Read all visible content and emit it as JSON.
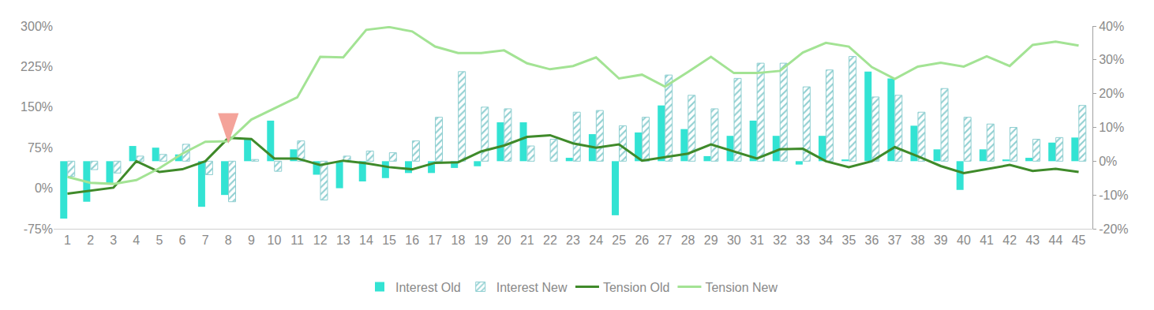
{
  "chart_data": {
    "type": "bar",
    "categories": [
      "1",
      "2",
      "3",
      "4",
      "5",
      "6",
      "7",
      "8",
      "9",
      "10",
      "11",
      "12",
      "13",
      "14",
      "15",
      "16",
      "17",
      "18",
      "19",
      "20",
      "21",
      "22",
      "23",
      "24",
      "25",
      "26",
      "27",
      "28",
      "29",
      "30",
      "31",
      "32",
      "33",
      "34",
      "35",
      "36",
      "37",
      "38",
      "39",
      "40",
      "41",
      "42",
      "43",
      "44",
      "45"
    ],
    "ylim": [
      -75,
      300
    ],
    "yticks": [
      {
        "value": -75,
        "label": "-75%"
      },
      {
        "value": 0,
        "label": "0%"
      },
      {
        "value": 75,
        "label": "75%"
      },
      {
        "value": 150,
        "label": "150%"
      },
      {
        "value": 225,
        "label": "225%"
      },
      {
        "value": 300,
        "label": "300%"
      }
    ],
    "y2lim": [
      -20,
      40
    ],
    "y2ticks": [
      {
        "value": -20,
        "label": "-20%"
      },
      {
        "value": -10,
        "label": "-10%"
      },
      {
        "value": 0,
        "label": "0%"
      },
      {
        "value": 10,
        "label": "10%"
      },
      {
        "value": 20,
        "label": "20%"
      },
      {
        "value": 30,
        "label": "30%"
      },
      {
        "value": 40,
        "label": "40%"
      }
    ],
    "grid": false,
    "legend": "bottom",
    "series": [
      {
        "name": "Tension Old",
        "type": "line",
        "color": "#3f8a2a",
        "line_style": "solid",
        "values": [
          -10,
          -5,
          1,
          50,
          30,
          35,
          50,
          93,
          91,
          55,
          55,
          43,
          51,
          46,
          39,
          35,
          47,
          48,
          68,
          79,
          95,
          98,
          83,
          75,
          81,
          51,
          57,
          64,
          81,
          68,
          55,
          72,
          73,
          50,
          39,
          50,
          76,
          59,
          41,
          28,
          36,
          43,
          32,
          36,
          30
        ]
      },
      {
        "name": "Tension New",
        "type": "line",
        "color": "#a3e394",
        "line_style": "solid",
        "values": [
          21,
          10,
          8,
          15,
          37,
          64,
          86,
          87,
          127,
          148,
          168,
          243,
          242,
          293,
          298,
          290,
          262,
          250,
          250,
          255,
          231,
          220,
          226,
          242,
          203,
          210,
          188,
          215,
          243,
          213,
          213,
          217,
          251,
          269,
          262,
          224,
          202,
          225,
          232,
          225,
          244,
          226,
          265,
          271,
          264
        ]
      },
      {
        "name": "Interest Old",
        "type": "bar",
        "axis": "y2",
        "color": "#33e3d3",
        "marker": "solid",
        "values": [
          -17,
          -12,
          -6.5,
          4.5,
          4,
          2,
          -13.5,
          -10,
          6.5,
          12,
          3.5,
          -4,
          -8,
          -6,
          -5,
          -3.5,
          -3.5,
          -2,
          -1.5,
          11.5,
          11.5,
          0,
          1,
          8,
          -16,
          8.5,
          16.5,
          9.5,
          1.5,
          7.5,
          12,
          7.5,
          -1,
          7.5,
          0.5,
          26.5,
          24.5,
          10.5,
          3.5,
          -8.5,
          3.5,
          0.5,
          1,
          5.5,
          7
        ]
      },
      {
        "name": "Interest New",
        "type": "bar",
        "axis": "y2",
        "color": "#8fcfd1",
        "marker": "hatched",
        "values": [
          -4.5,
          -2.5,
          -3.5,
          1.5,
          2,
          5,
          -4,
          -12,
          0.5,
          -3,
          6,
          -11.5,
          1.5,
          3,
          2.5,
          6,
          13,
          26.5,
          16,
          15.5,
          4.5,
          6.5,
          14.5,
          15,
          10.5,
          13,
          25.5,
          19.5,
          15.5,
          24.5,
          29,
          29,
          22,
          27,
          31,
          19,
          19.5,
          14.5,
          21.5,
          13,
          11,
          10,
          6.5,
          7,
          16.5
        ]
      }
    ]
  }
}
